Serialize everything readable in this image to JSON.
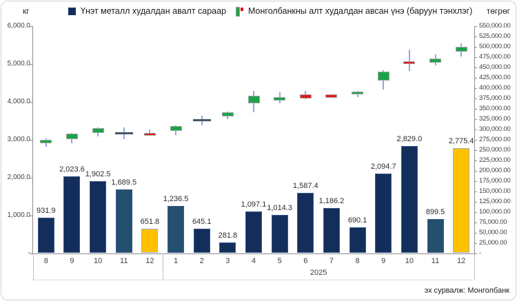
{
  "axes": {
    "left_title": "кг",
    "right_title": "төгрөг",
    "left_ticks": [
      "6,000.0",
      "5,000.0",
      "4,000.0",
      "3,000.0",
      "2,000.0",
      "1,000.0",
      "-"
    ],
    "right_ticks": [
      "550,000.00",
      "525,000.00",
      "500,000.00",
      "475,000.00",
      "450,000.00",
      "425,000.00",
      "400,000.00",
      "375,000.00",
      "350,000.00",
      "325,000.00",
      "300,000.00",
      "275,000.00",
      "250,000.00",
      "225,000.00",
      "200,000.00",
      "175,000.00",
      "150,000.00",
      "125,000.00",
      "100,000.00",
      "75,000.00",
      "50,000.00",
      "25,000.00",
      "-"
    ]
  },
  "legend": [
    {
      "label": "Үнэт металл худалдан авалт сараар",
      "marker": "bar-square",
      "color": "#132E5B"
    },
    {
      "label": "Монголбанкны алт худалдан авсан үнэ (баруун тэнхлэг)",
      "marker": "candlestick",
      "color_up": "#1CA24A",
      "color_down": "#E01A1A"
    }
  ],
  "source_note": "эх сурвалж: Монголбанк",
  "chart_data": {
    "type": "bar",
    "subtype": "combo-bar-candlestick",
    "category_groups": [
      {
        "year_label": "",
        "months": [
          "8",
          "9",
          "10",
          "11",
          "12"
        ]
      },
      {
        "year_label": "2025",
        "months": [
          "1",
          "2",
          "3",
          "4",
          "5",
          "6",
          "7",
          "8",
          "9",
          "10",
          "11",
          "12"
        ]
      }
    ],
    "left_axis": {
      "min": 0,
      "max": 6000,
      "step": 1000,
      "unit": "кг"
    },
    "right_axis": {
      "min": 0,
      "max": 550000,
      "step": 25000,
      "unit": "төгрөг"
    },
    "palette": {
      "navy": "#132E5B",
      "slate": "#24506F",
      "gold": "#FFC000",
      "gold_border": "#9DB0CE",
      "navy_border": "#3C5A8C",
      "up": "#1CA24A",
      "down": "#E01A1A",
      "doji": "#44546A",
      "wick": "#8EA9DC"
    },
    "bar_series": {
      "name": "Үнэт металл худалдан авалт сараар",
      "axis": "left",
      "values": [
        931.9,
        2023.6,
        1902.5,
        1689.5,
        651.8,
        1236.5,
        645.1,
        281.8,
        1097.1,
        1014.3,
        1587.4,
        1186.2,
        690.1,
        2094.7,
        2829.0,
        899.5,
        2775.4
      ],
      "labels": [
        "931.9",
        "2,023.6",
        "1,902.5",
        "1,689.5",
        "651.8",
        "1,236.5",
        "645.1",
        "281.8",
        "1,097.1",
        "1,014.3",
        "1,587.4",
        "1,186.2",
        "690.1",
        "2,094.7",
        "2,829.0",
        "899.5",
        "2,775.4"
      ],
      "colors": [
        "navy",
        "navy",
        "navy",
        "slate",
        "gold",
        "slate",
        "navy",
        "navy",
        "navy",
        "navy",
        "navy",
        "navy",
        "navy",
        "navy",
        "navy",
        "slate",
        "gold"
      ]
    },
    "candle_series": {
      "name": "Монголбанкны алт худалдан авсан үнэ (баруун тэнхлэг)",
      "axis": "right",
      "ohlc": [
        {
          "open": 266000,
          "high": 277000,
          "low": 257000,
          "close": 273500,
          "style": "up"
        },
        {
          "open": 276500,
          "high": 291500,
          "low": 265000,
          "close": 290000,
          "style": "up"
        },
        {
          "open": 291500,
          "high": 303500,
          "low": 282000,
          "close": 302500,
          "style": "up"
        },
        {
          "open": 290000,
          "high": 304000,
          "low": 276500,
          "close": 290000,
          "style": "doji"
        },
        {
          "open": 291500,
          "high": 298500,
          "low": 283500,
          "close": 284500,
          "style": "down"
        },
        {
          "open": 296000,
          "high": 309000,
          "low": 286000,
          "close": 308000,
          "style": "up"
        },
        {
          "open": 321000,
          "high": 332000,
          "low": 309500,
          "close": 321000,
          "style": "doji"
        },
        {
          "open": 330500,
          "high": 342500,
          "low": 323500,
          "close": 341500,
          "style": "up"
        },
        {
          "open": 362000,
          "high": 393000,
          "low": 340500,
          "close": 381000,
          "style": "up"
        },
        {
          "open": 369000,
          "high": 390000,
          "low": 362500,
          "close": 378000,
          "style": "up"
        },
        {
          "open": 384000,
          "high": 393000,
          "low": 372500,
          "close": 374500,
          "style": "down"
        },
        {
          "open": 383500,
          "high": 385000,
          "low": 375500,
          "close": 376500,
          "style": "down"
        },
        {
          "open": 383500,
          "high": 392500,
          "low": 377500,
          "close": 391500,
          "style": "up"
        },
        {
          "open": 418000,
          "high": 442000,
          "low": 396000,
          "close": 440000,
          "style": "up"
        },
        {
          "open": 463500,
          "high": 493000,
          "low": 440000,
          "close": 457000,
          "style": "down"
        },
        {
          "open": 461500,
          "high": 480500,
          "low": 454000,
          "close": 471000,
          "style": "up"
        },
        {
          "open": 487500,
          "high": 507000,
          "low": 476500,
          "close": 498500,
          "style": "up"
        }
      ]
    }
  }
}
